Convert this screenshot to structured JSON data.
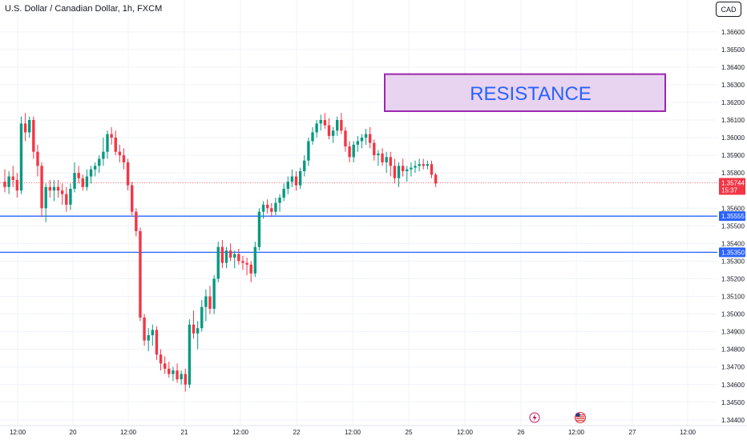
{
  "header": {
    "title": "U.S. Dollar / Canadian Dollar, 1h, FXCM",
    "currency": "CAD"
  },
  "colors": {
    "up": "#089981",
    "down": "#f23645",
    "level": "#2962ff",
    "zone_fill": "#e8d4f0",
    "zone_border": "#9c27b0",
    "price_tag": "#f23645"
  },
  "chart_data": {
    "type": "candlestick",
    "symbol": "U.S. Dollar / Canadian Dollar, 1h, FXCM",
    "y_ticks": [
      "1.36600",
      "1.36500",
      "1.36400",
      "1.36300",
      "1.36200",
      "1.36100",
      "1.36000",
      "1.35900",
      "1.35800",
      "1.35600",
      "1.35500",
      "1.35400",
      "1.35300",
      "1.35200",
      "1.35100",
      "1.35000",
      "1.34900",
      "1.34800",
      "1.34700",
      "1.34600",
      "1.34500",
      "1.34400"
    ],
    "ylim": [
      1.344,
      1.3675
    ],
    "x_ticks": [
      "12:00",
      "20",
      "12:00",
      "21",
      "12:00",
      "22",
      "12:00",
      "25",
      "12:00",
      "26",
      "12:00",
      "27",
      "12:00"
    ],
    "candles": [
      [
        1.3575,
        1.3582,
        1.3569,
        1.3572
      ],
      [
        1.3572,
        1.3581,
        1.3568,
        1.3578
      ],
      [
        1.3578,
        1.3584,
        1.3572,
        1.3576
      ],
      [
        1.3576,
        1.358,
        1.3566,
        1.357
      ],
      [
        1.357,
        1.3612,
        1.3568,
        1.3608
      ],
      [
        1.3608,
        1.3614,
        1.3598,
        1.3603
      ],
      [
        1.3603,
        1.3612,
        1.36,
        1.361
      ],
      [
        1.361,
        1.3612,
        1.3588,
        1.3592
      ],
      [
        1.3592,
        1.3596,
        1.3578,
        1.3584
      ],
      [
        1.3584,
        1.3586,
        1.3555,
        1.356
      ],
      [
        1.356,
        1.3574,
        1.3552,
        1.3572
      ],
      [
        1.3572,
        1.3576,
        1.3566,
        1.357
      ],
      [
        1.357,
        1.3576,
        1.3564,
        1.3572
      ],
      [
        1.3572,
        1.3576,
        1.3566,
        1.357
      ],
      [
        1.357,
        1.3574,
        1.3562,
        1.3568
      ],
      [
        1.3568,
        1.3572,
        1.3558,
        1.3562
      ],
      [
        1.3562,
        1.3574,
        1.3559,
        1.3571
      ],
      [
        1.3571,
        1.3586,
        1.3569,
        1.358
      ],
      [
        1.358,
        1.3584,
        1.3574,
        1.3577
      ],
      [
        1.3577,
        1.3579,
        1.357,
        1.3572
      ],
      [
        1.3572,
        1.3582,
        1.357,
        1.3578
      ],
      [
        1.3578,
        1.3584,
        1.3574,
        1.3582
      ],
      [
        1.3582,
        1.3586,
        1.3578,
        1.3584
      ],
      [
        1.3584,
        1.359,
        1.358,
        1.3588
      ],
      [
        1.3588,
        1.36,
        1.3584,
        1.3592
      ],
      [
        1.3592,
        1.3604,
        1.3588,
        1.3602
      ],
      [
        1.3602,
        1.3606,
        1.3596,
        1.36
      ],
      [
        1.36,
        1.3604,
        1.359,
        1.3592
      ],
      [
        1.3592,
        1.3596,
        1.3586,
        1.359
      ],
      [
        1.359,
        1.3594,
        1.3582,
        1.3586
      ],
      [
        1.3586,
        1.3588,
        1.357,
        1.3573
      ],
      [
        1.3573,
        1.3575,
        1.3556,
        1.3558
      ],
      [
        1.3558,
        1.356,
        1.3544,
        1.3547
      ],
      [
        1.3547,
        1.3549,
        1.3496,
        1.3498
      ],
      [
        1.3498,
        1.35,
        1.3482,
        1.3485
      ],
      [
        1.3485,
        1.3492,
        1.3479,
        1.3488
      ],
      [
        1.3488,
        1.3494,
        1.3482,
        1.3491
      ],
      [
        1.3491,
        1.3493,
        1.3474,
        1.3477
      ],
      [
        1.3477,
        1.348,
        1.3468,
        1.3472
      ],
      [
        1.3472,
        1.3476,
        1.3466,
        1.3469
      ],
      [
        1.3469,
        1.3473,
        1.3464,
        1.3466
      ],
      [
        1.3466,
        1.347,
        1.3462,
        1.3468
      ],
      [
        1.3468,
        1.3472,
        1.3461,
        1.3463
      ],
      [
        1.3463,
        1.3468,
        1.346,
        1.3466
      ],
      [
        1.3466,
        1.3469,
        1.3456,
        1.346
      ],
      [
        1.346,
        1.3497,
        1.3458,
        1.3494
      ],
      [
        1.3494,
        1.3502,
        1.3486,
        1.3489
      ],
      [
        1.3489,
        1.3496,
        1.348,
        1.3492
      ],
      [
        1.3492,
        1.3508,
        1.349,
        1.3504
      ],
      [
        1.3504,
        1.3514,
        1.3496,
        1.351
      ],
      [
        1.351,
        1.3516,
        1.35,
        1.3503
      ],
      [
        1.3503,
        1.3522,
        1.35,
        1.352
      ],
      [
        1.352,
        1.3541,
        1.3518,
        1.3538
      ],
      [
        1.3538,
        1.3542,
        1.3526,
        1.3529
      ],
      [
        1.3529,
        1.3538,
        1.3526,
        1.3536
      ],
      [
        1.3536,
        1.354,
        1.353,
        1.3532
      ],
      [
        1.3532,
        1.3536,
        1.3526,
        1.3534
      ],
      [
        1.3534,
        1.3537,
        1.3528,
        1.353
      ],
      [
        1.353,
        1.3533,
        1.3525,
        1.3529
      ],
      [
        1.3529,
        1.3532,
        1.3522,
        1.3528
      ],
      [
        1.3528,
        1.353,
        1.3518,
        1.3523
      ],
      [
        1.3523,
        1.3541,
        1.3521,
        1.3538
      ],
      [
        1.3538,
        1.356,
        1.3536,
        1.3558
      ],
      [
        1.3558,
        1.3564,
        1.3554,
        1.3562
      ],
      [
        1.3562,
        1.3565,
        1.3557,
        1.356
      ],
      [
        1.356,
        1.3563,
        1.3555,
        1.3558
      ],
      [
        1.3558,
        1.3566,
        1.3556,
        1.3563
      ],
      [
        1.3563,
        1.3568,
        1.3558,
        1.3566
      ],
      [
        1.3566,
        1.3574,
        1.3564,
        1.3571
      ],
      [
        1.3571,
        1.3578,
        1.3568,
        1.3575
      ],
      [
        1.3575,
        1.3582,
        1.3572,
        1.3578
      ],
      [
        1.3578,
        1.3581,
        1.357,
        1.3573
      ],
      [
        1.3573,
        1.3583,
        1.3571,
        1.3581
      ],
      [
        1.3581,
        1.359,
        1.3578,
        1.3587
      ],
      [
        1.3587,
        1.36,
        1.3584,
        1.3598
      ],
      [
        1.3598,
        1.3606,
        1.3596,
        1.3603
      ],
      [
        1.3603,
        1.361,
        1.36,
        1.3608
      ],
      [
        1.3608,
        1.3613,
        1.3604,
        1.361
      ],
      [
        1.361,
        1.3614,
        1.3605,
        1.3607
      ],
      [
        1.3607,
        1.3611,
        1.3599,
        1.3601
      ],
      [
        1.3601,
        1.3606,
        1.3597,
        1.3604
      ],
      [
        1.3604,
        1.3612,
        1.3601,
        1.361
      ],
      [
        1.361,
        1.3614,
        1.3602,
        1.3604
      ],
      [
        1.3604,
        1.3606,
        1.3592,
        1.3595
      ],
      [
        1.3595,
        1.3598,
        1.3586,
        1.3589
      ],
      [
        1.3589,
        1.3598,
        1.3586,
        1.3596
      ],
      [
        1.3596,
        1.3601,
        1.3592,
        1.3598
      ],
      [
        1.3598,
        1.3602,
        1.3594,
        1.36
      ],
      [
        1.36,
        1.3605,
        1.3596,
        1.3602
      ],
      [
        1.3602,
        1.3606,
        1.3594,
        1.3597
      ],
      [
        1.3597,
        1.3599,
        1.3587,
        1.359
      ],
      [
        1.359,
        1.3593,
        1.3584,
        1.3591
      ],
      [
        1.3591,
        1.3594,
        1.3584,
        1.3586
      ],
      [
        1.3586,
        1.3592,
        1.358,
        1.3589
      ],
      [
        1.3589,
        1.3592,
        1.3578,
        1.3584
      ],
      [
        1.3584,
        1.3588,
        1.3574,
        1.3577
      ],
      [
        1.3577,
        1.3586,
        1.3572,
        1.3584
      ],
      [
        1.3584,
        1.3588,
        1.3578,
        1.3581
      ],
      [
        1.3581,
        1.3584,
        1.3575,
        1.3582
      ],
      [
        1.3582,
        1.3586,
        1.3578,
        1.3583
      ],
      [
        1.3583,
        1.3587,
        1.358,
        1.3584
      ],
      [
        1.3584,
        1.3588,
        1.3581,
        1.3585
      ],
      [
        1.3585,
        1.3588,
        1.3582,
        1.3584
      ],
      [
        1.3584,
        1.3587,
        1.3582,
        1.3585
      ],
      [
        1.3585,
        1.3587,
        1.3577,
        1.3579
      ],
      [
        1.3579,
        1.358,
        1.3572,
        1.3574
      ]
    ],
    "levels": [
      {
        "price": 1.35555,
        "label": "1.35555"
      },
      {
        "price": 1.3535,
        "label": "1.35350"
      }
    ],
    "current_price": {
      "price": 1.35744,
      "label": "1.35744",
      "countdown": "15:37"
    },
    "resistance_zone": {
      "from": 1.3615,
      "to": 1.3636,
      "label": "RESISTANCE"
    },
    "events": [
      {
        "icon": "lightning-icon",
        "position": "between 25 12:00 and 26"
      },
      {
        "icon": "us-flag-icon",
        "position": "26"
      }
    ],
    "grid": true
  }
}
